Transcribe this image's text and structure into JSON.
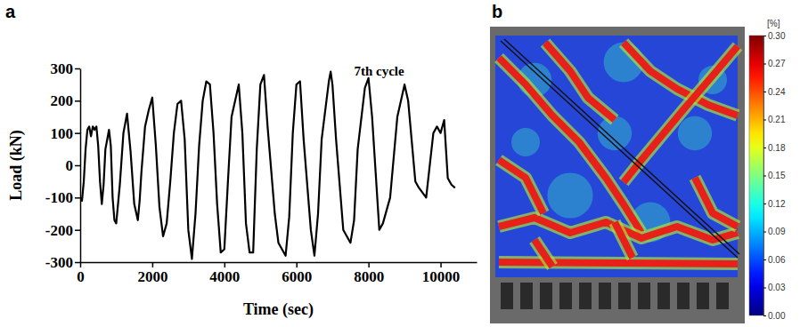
{
  "chart_data": [
    {
      "type": "line",
      "panel_label": "a",
      "x_label": "Time (sec)",
      "y_label": "Load (kN)",
      "xlim": [
        0,
        11000
      ],
      "ylim": [
        -300,
        300
      ],
      "xticks": [
        0,
        2000,
        4000,
        6000,
        8000,
        10000
      ],
      "yticks": [
        -300,
        -200,
        -100,
        0,
        100,
        200,
        300
      ],
      "color": "#000000",
      "annotations": [
        {
          "text": "7th cycle",
          "x": 7600,
          "y": 278
        }
      ],
      "x": [
        0,
        50,
        100,
        150,
        200,
        250,
        300,
        350,
        400,
        450,
        500,
        550,
        600,
        650,
        700,
        750,
        800,
        850,
        900,
        950,
        1000,
        1100,
        1200,
        1300,
        1400,
        1500,
        1600,
        1650,
        1700,
        1800,
        1900,
        2000,
        2100,
        2200,
        2300,
        2400,
        2500,
        2600,
        2700,
        2800,
        2900,
        3000,
        3100,
        3200,
        3300,
        3400,
        3500,
        3600,
        3700,
        3800,
        3900,
        4000,
        4100,
        4200,
        4300,
        4400,
        4500,
        4600,
        4700,
        4800,
        4900,
        5000,
        5100,
        5200,
        5400,
        5500,
        5700,
        5800,
        5900,
        6000,
        6100,
        6200,
        6400,
        6500,
        6600,
        6700,
        6900,
        6950,
        7000,
        7100,
        7300,
        7500,
        7600,
        7700,
        7900,
        8000,
        8100,
        8300,
        8400,
        8600,
        8800,
        9000,
        9100,
        9300,
        9400,
        9600,
        9800,
        9900,
        10000,
        10100,
        10200,
        10300,
        10400
      ],
      "values": [
        -100,
        -110,
        -50,
        50,
        110,
        120,
        90,
        120,
        110,
        120,
        60,
        -50,
        -120,
        -60,
        50,
        80,
        110,
        60,
        -100,
        -170,
        -180,
        -60,
        100,
        160,
        40,
        -120,
        -170,
        -110,
        -20,
        120,
        170,
        210,
        60,
        -130,
        -220,
        -180,
        -50,
        100,
        190,
        200,
        80,
        -200,
        -290,
        -150,
        60,
        200,
        260,
        250,
        100,
        -120,
        -270,
        -260,
        -50,
        150,
        200,
        250,
        100,
        -180,
        -270,
        -270,
        50,
        250,
        280,
        120,
        -150,
        -240,
        -280,
        -160,
        100,
        250,
        260,
        80,
        -200,
        -280,
        -150,
        80,
        260,
        290,
        250,
        80,
        -200,
        -240,
        -170,
        50,
        240,
        270,
        150,
        -200,
        -180,
        -100,
        150,
        250,
        200,
        -50,
        -70,
        -100,
        100,
        120,
        100,
        140,
        -40,
        -60,
        -70
      ]
    },
    {
      "type": "heatmap",
      "panel_label": "b",
      "colorbar": {
        "label": "[%]",
        "range": [
          0,
          0.3
        ],
        "ticks": [
          {
            "value": 0,
            "label": "0.00"
          },
          {
            "value": 0.03,
            "label": "0.03"
          },
          {
            "value": 0.06,
            "label": "0.06"
          },
          {
            "value": 0.09,
            "label": "0.09"
          },
          {
            "value": 0.12,
            "label": "0.12"
          },
          {
            "value": 0.15,
            "label": "0.15"
          },
          {
            "value": 0.18,
            "label": "0.18"
          },
          {
            "value": 0.21,
            "label": "0.21"
          },
          {
            "value": 0.24,
            "label": "0.24"
          },
          {
            "value": 0.27,
            "label": "0.27"
          },
          {
            "value": 0.3,
            "label": "0.30"
          }
        ]
      }
    }
  ]
}
